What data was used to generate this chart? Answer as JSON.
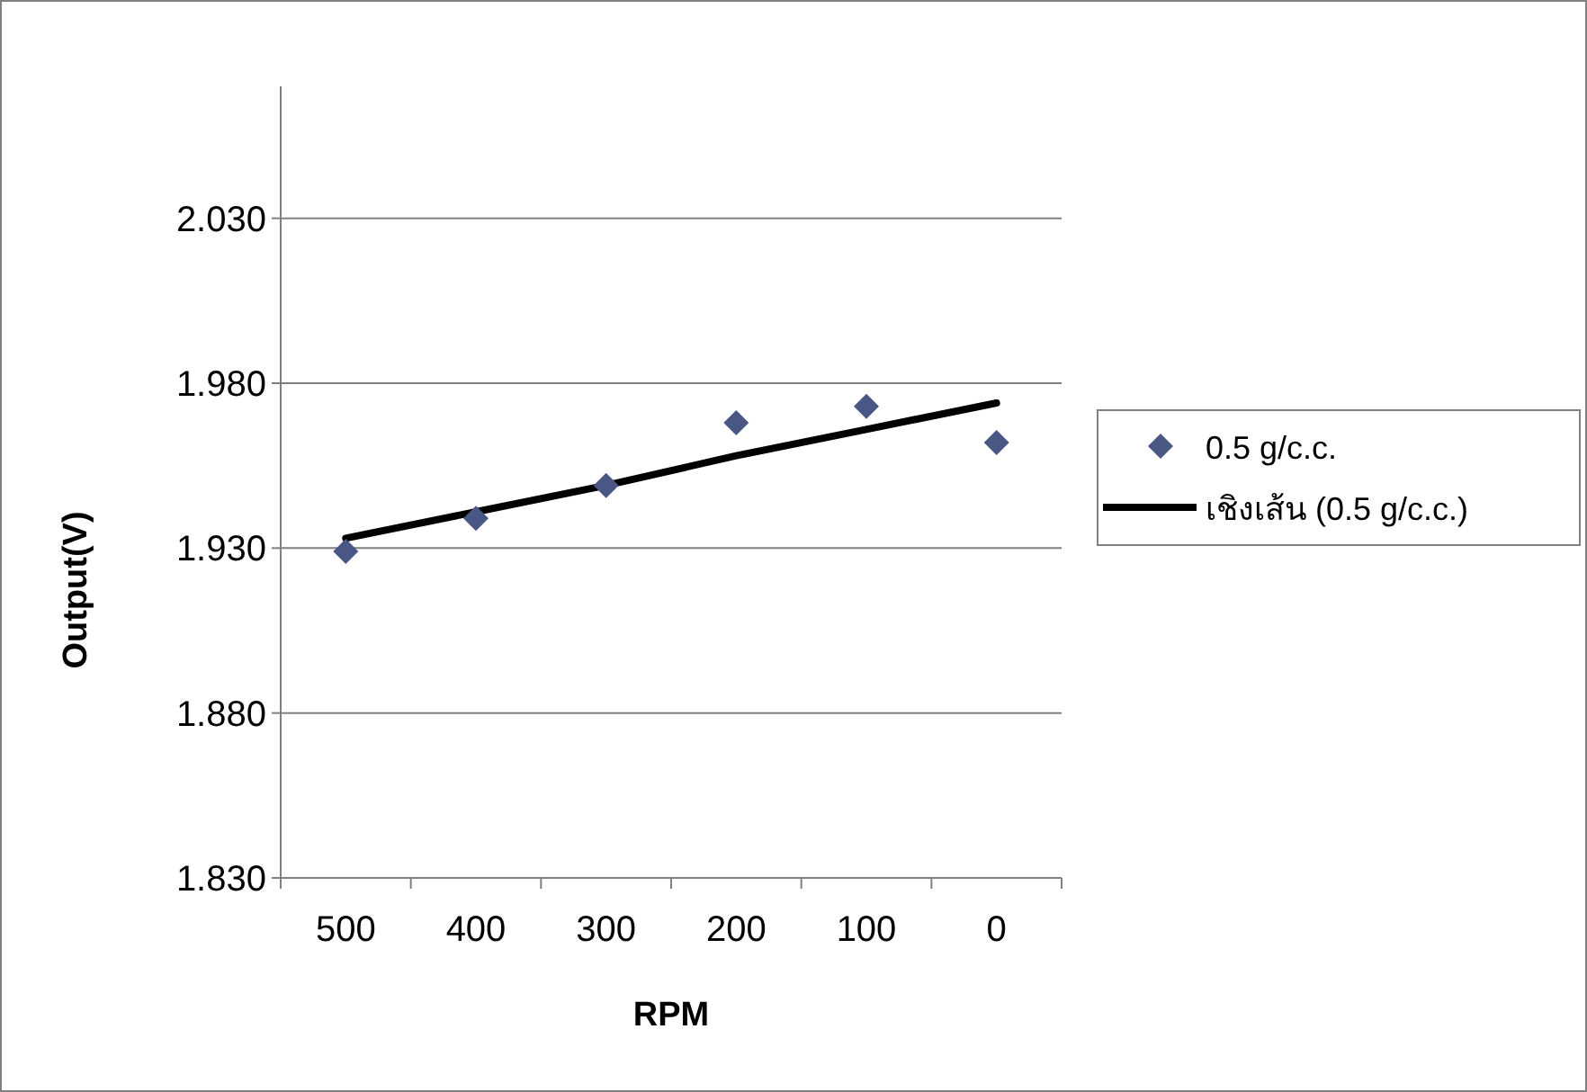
{
  "chart_data": {
    "type": "scatter",
    "xlabel": "RPM",
    "ylabel": "Output(V)",
    "categories": [
      "500",
      "400",
      "300",
      "200",
      "100",
      "0"
    ],
    "series": [
      {
        "name": "0.5 g/c.c.",
        "color": "#4a5784",
        "marker": "diamond",
        "values": [
          1.929,
          1.939,
          1.949,
          1.968,
          1.973,
          1.962
        ]
      },
      {
        "name": "เชิงเส้น (0.5 g/c.c.)",
        "type": "line",
        "color": "#000000",
        "line_style": "solid",
        "values": [
          1.933,
          1.941,
          1.949,
          1.958,
          1.966,
          1.974
        ]
      }
    ],
    "ylim": [
      1.83,
      2.07
    ],
    "yticks": [
      {
        "value": 1.83,
        "label": "1.830"
      },
      {
        "value": 1.88,
        "label": "1.880"
      },
      {
        "value": 1.93,
        "label": "1.930"
      },
      {
        "value": 1.98,
        "label": "1.980"
      },
      {
        "value": 2.03,
        "label": "2.030"
      }
    ],
    "grid": "y",
    "legend": "right"
  }
}
